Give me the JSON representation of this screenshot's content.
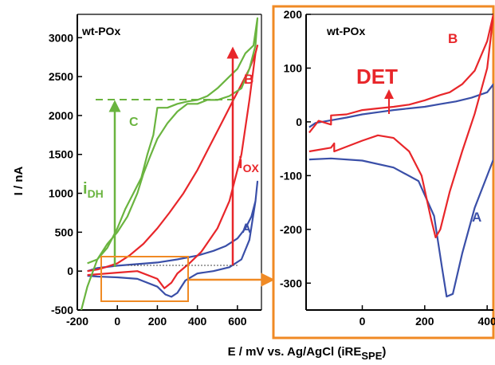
{
  "xlabel": "E / mV vs. Ag/AgCl (iRE",
  "xlabel_sub": "SPE",
  "xlabel_close": ")",
  "ylabel": "I / nA",
  "colors": {
    "red": "#e8262a",
    "blue": "#3a4fa8",
    "green": "#6ab43f",
    "orange": "#f08a24"
  },
  "chart_data": [
    {
      "type": "line",
      "title": "wt-POx",
      "xlabel": "E / mV vs. Ag/AgCl (iRE_SPE)",
      "ylabel": "I / nA",
      "xlim": [
        -200,
        720
      ],
      "ylim": [
        -500,
        3300
      ],
      "xticks": [
        -200,
        0,
        200,
        400,
        600
      ],
      "yticks": [
        -500,
        0,
        500,
        1000,
        1500,
        2000,
        2500,
        3000
      ],
      "annotations": {
        "A": "A",
        "B": "B",
        "C": "C",
        "i_dh": "i",
        "i_dh_sub": "DH",
        "i_ox": "i",
        "i_ox_sub": "OX"
      },
      "grid": false,
      "series": [
        {
          "name": "A",
          "x": [
            -150,
            -100,
            0,
            100,
            200,
            240,
            270,
            300,
            340,
            400,
            480,
            560,
            620,
            660,
            690,
            700,
            690,
            670,
            640,
            600,
            540,
            480,
            400,
            300,
            200,
            100,
            0,
            -100,
            -150
          ],
          "y": [
            -60,
            -70,
            -80,
            -100,
            -200,
            -300,
            -330,
            -280,
            -120,
            -30,
            0,
            50,
            150,
            400,
            900,
            1150,
            900,
            700,
            550,
            420,
            320,
            260,
            200,
            150,
            110,
            90,
            70,
            40,
            0
          ]
        },
        {
          "name": "B",
          "x": [
            -150,
            -100,
            0,
            100,
            200,
            235,
            270,
            300,
            360,
            420,
            500,
            560,
            620,
            660,
            690,
            700,
            690,
            660,
            620,
            580,
            520,
            460,
            400,
            330,
            260,
            200,
            130,
            60,
            0,
            -60,
            -100,
            -150
          ],
          "y": [
            -50,
            -40,
            -20,
            0,
            -100,
            -220,
            -150,
            -30,
            100,
            250,
            550,
            900,
            1500,
            2200,
            2800,
            2900,
            2800,
            2600,
            2400,
            2200,
            1900,
            1600,
            1300,
            1000,
            750,
            550,
            350,
            200,
            100,
            50,
            20,
            0
          ]
        },
        {
          "name": "C",
          "x": [
            -180,
            -150,
            -100,
            -50,
            0,
            50,
            100,
            130,
            160,
            200,
            250,
            300,
            350,
            400,
            450,
            500,
            560,
            620,
            660,
            690,
            700,
            680,
            640,
            600,
            560,
            500,
            450,
            400,
            350,
            300,
            250,
            200,
            180,
            150,
            120,
            80,
            40,
            0,
            -50,
            -100,
            -150
          ],
          "y": [
            -500,
            -200,
            150,
            350,
            500,
            700,
            1000,
            1250,
            1450,
            1700,
            1900,
            2050,
            2150,
            2150,
            2200,
            2200,
            2250,
            2350,
            2600,
            2900,
            3250,
            2900,
            2800,
            2600,
            2500,
            2350,
            2250,
            2200,
            2180,
            2150,
            2100,
            2100,
            1750,
            1500,
            1200,
            1000,
            800,
            550,
            300,
            150,
            100
          ]
        }
      ]
    },
    {
      "type": "line",
      "title": "wt-POx",
      "xlim": [
        -180,
        420
      ],
      "ylim": [
        -350,
        200
      ],
      "xticks": [
        0,
        200,
        400
      ],
      "yticks": [
        -300,
        -200,
        -100,
        0,
        100,
        200
      ],
      "annotations": {
        "A": "A",
        "B": "B",
        "DET": "DET"
      },
      "grid": false,
      "series": [
        {
          "name": "A",
          "x": [
            -170,
            -100,
            0,
            100,
            180,
            230,
            255,
            270,
            290,
            320,
            360,
            400,
            420,
            420,
            400,
            350,
            300,
            250,
            200,
            150,
            100,
            50,
            0,
            -50,
            -100,
            -150,
            -170
          ],
          "y": [
            -70,
            -68,
            -72,
            -85,
            -110,
            -175,
            -270,
            -325,
            -320,
            -245,
            -160,
            -100,
            -70,
            70,
            55,
            45,
            38,
            33,
            28,
            25,
            22,
            18,
            14,
            8,
            3,
            -2,
            -10
          ]
        },
        {
          "name": "B",
          "x": [
            -170,
            -100,
            -90,
            -90,
            0,
            50,
            100,
            150,
            190,
            220,
            235,
            250,
            280,
            320,
            360,
            400,
            420,
            420,
            400,
            360,
            320,
            280,
            250,
            200,
            150,
            100,
            50,
            0,
            -50,
            -100,
            -100,
            -140,
            -170
          ],
          "y": [
            -55,
            -48,
            -40,
            -55,
            -35,
            -25,
            -30,
            -55,
            -100,
            -180,
            -215,
            -200,
            -130,
            -55,
            15,
            100,
            200,
            200,
            150,
            95,
            70,
            55,
            50,
            40,
            32,
            28,
            25,
            22,
            14,
            12,
            -5,
            2,
            -20
          ]
        }
      ]
    }
  ]
}
